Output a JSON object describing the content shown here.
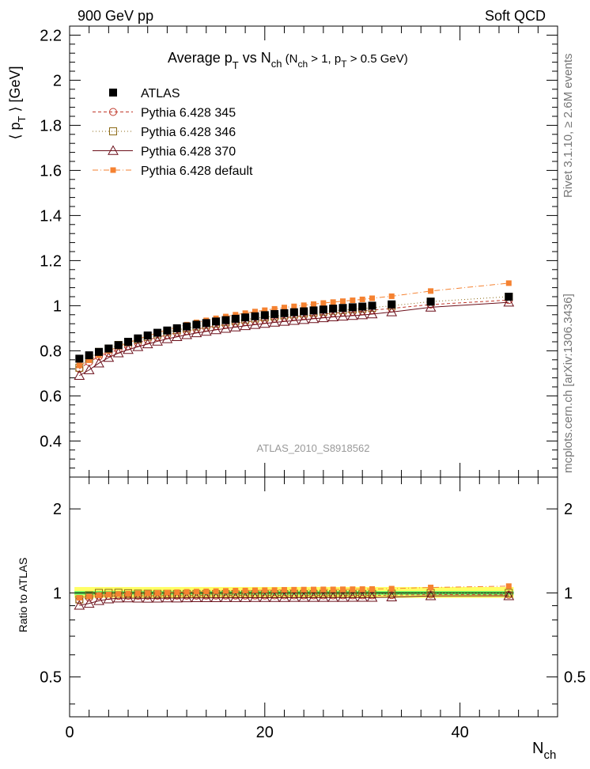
{
  "header": {
    "left": "900 GeV pp",
    "right": "Soft QCD"
  },
  "side_labels": {
    "top": "Rivet 3.1.10, ≥ 2.6M events",
    "bottom": "mcplots.cern.ch [arXiv:1306.3436]"
  },
  "colors": {
    "atlas": "#000000",
    "p345": "#c0392b",
    "p346": "#8b6914",
    "p370": "#6b0f1a",
    "default": "#f58231",
    "band_yellow": "#ffff66",
    "band_green": "#66ee66"
  },
  "chart_data": [
    {
      "type": "scatter",
      "title": "Average p_T vs N_ch (N_ch > 1, p_T > 0.5 GeV)",
      "watermark": "ATLAS_2010_S8918562",
      "ylabel": "⟨ p_T ⟩ [GeV]",
      "xlim": [
        0,
        50
      ],
      "ylim": [
        0.24,
        2.24
      ],
      "yticks": [
        "0.4",
        "0.6",
        "0.8",
        "1",
        "1.2",
        "1.4",
        "1.6",
        "1.8",
        "2",
        "2.2"
      ],
      "legend_position": "top-left",
      "x": [
        1,
        2,
        3,
        4,
        5,
        6,
        7,
        8,
        9,
        10,
        11,
        12,
        13,
        14,
        15,
        16,
        17,
        18,
        19,
        20,
        21,
        22,
        23,
        24,
        25,
        26,
        27,
        28,
        29,
        30,
        31,
        33,
        37,
        45
      ],
      "series": [
        {
          "name": "ATLAS",
          "marker": "filled-square",
          "values": [
            0.765,
            0.78,
            0.795,
            0.81,
            0.825,
            0.84,
            0.855,
            0.868,
            0.88,
            0.89,
            0.9,
            0.908,
            0.916,
            0.923,
            0.93,
            0.936,
            0.942,
            0.948,
            0.953,
            0.958,
            0.963,
            0.967,
            0.971,
            0.975,
            0.979,
            0.983,
            0.987,
            0.99,
            0.993,
            0.996,
            1.0,
            1.006,
            1.018,
            1.04
          ]
        },
        {
          "name": "Pythia 6.428 345",
          "marker": "open-circle",
          "line": "dashed",
          "values": [
            0.72,
            0.75,
            0.775,
            0.79,
            0.805,
            0.82,
            0.835,
            0.848,
            0.86,
            0.87,
            0.88,
            0.888,
            0.896,
            0.903,
            0.91,
            0.916,
            0.922,
            0.928,
            0.933,
            0.938,
            0.943,
            0.947,
            0.951,
            0.955,
            0.959,
            0.963,
            0.967,
            0.97,
            0.973,
            0.976,
            0.98,
            0.988,
            1.005,
            1.025
          ]
        },
        {
          "name": "Pythia 6.428 346",
          "marker": "open-square",
          "line": "dotted",
          "values": [
            0.725,
            0.765,
            0.795,
            0.81,
            0.826,
            0.838,
            0.85,
            0.862,
            0.873,
            0.883,
            0.892,
            0.9,
            0.908,
            0.915,
            0.921,
            0.927,
            0.933,
            0.939,
            0.944,
            0.949,
            0.953,
            0.958,
            0.962,
            0.966,
            0.97,
            0.974,
            0.978,
            0.981,
            0.984,
            0.987,
            0.991,
            1.0,
            1.018,
            1.04
          ]
        },
        {
          "name": "Pythia 6.428 370",
          "marker": "open-triangle",
          "line": "solid",
          "values": [
            0.69,
            0.715,
            0.745,
            0.77,
            0.79,
            0.805,
            0.818,
            0.83,
            0.842,
            0.853,
            0.862,
            0.871,
            0.879,
            0.886,
            0.893,
            0.899,
            0.905,
            0.911,
            0.916,
            0.921,
            0.926,
            0.93,
            0.934,
            0.938,
            0.942,
            0.946,
            0.95,
            0.953,
            0.956,
            0.959,
            0.963,
            0.972,
            0.993,
            1.015
          ]
        },
        {
          "name": "Pythia 6.428 default",
          "marker": "filled-square-small",
          "line": "dash-dot",
          "values": [
            0.735,
            0.758,
            0.78,
            0.8,
            0.818,
            0.835,
            0.851,
            0.866,
            0.88,
            0.893,
            0.905,
            0.916,
            0.926,
            0.935,
            0.944,
            0.952,
            0.96,
            0.967,
            0.974,
            0.98,
            0.986,
            0.992,
            0.997,
            1.002,
            1.007,
            1.012,
            1.016,
            1.02,
            1.024,
            1.028,
            1.033,
            1.042,
            1.065,
            1.1
          ]
        }
      ]
    },
    {
      "type": "scatter",
      "ylabel": "Ratio to ATLAS",
      "xlabel": "N_ch",
      "xlim": [
        0,
        50
      ],
      "ylim": [
        0.36,
        2.6
      ],
      "yscale": "log",
      "yticks": [
        "0.5",
        "1",
        "2"
      ],
      "xticks": [
        "0",
        "20",
        "40"
      ],
      "band": {
        "yellow": [
          0.96,
          1.05
        ],
        "green": [
          0.985,
          1.015
        ]
      }
    }
  ]
}
